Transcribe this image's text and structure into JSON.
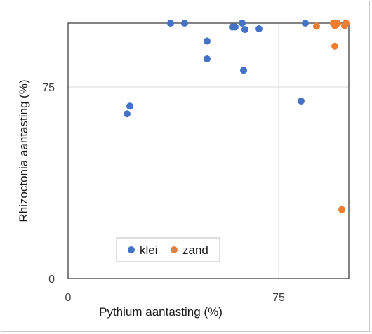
{
  "chart_data": {
    "type": "scatter",
    "title": "",
    "xlabel": "Pythium aantasting (%)",
    "ylabel": "Rhizoctonia aantasting (%)",
    "xlim": [
      0,
      100
    ],
    "ylim": [
      0,
      100
    ],
    "x_ticks": [
      {
        "value": 0,
        "label": "0"
      },
      {
        "value": 75,
        "label": "75"
      }
    ],
    "y_ticks": [
      {
        "value": 0,
        "label": "0"
      },
      {
        "value": 75,
        "label": "75"
      }
    ],
    "grid": true,
    "legend_position": "bottom-left",
    "series": [
      {
        "name": "klei",
        "color": "#4472C4",
        "points": [
          {
            "x": 21,
            "y": 64.5
          },
          {
            "x": 22,
            "y": 67.5
          },
          {
            "x": 36.5,
            "y": 100
          },
          {
            "x": 41.5,
            "y": 100
          },
          {
            "x": 49.5,
            "y": 93
          },
          {
            "x": 49.5,
            "y": 86
          },
          {
            "x": 58.5,
            "y": 98.5
          },
          {
            "x": 59.5,
            "y": 98.5
          },
          {
            "x": 62,
            "y": 100
          },
          {
            "x": 63,
            "y": 97.5
          },
          {
            "x": 62.5,
            "y": 81.5
          },
          {
            "x": 68,
            "y": 97.8
          },
          {
            "x": 83,
            "y": 69.5
          },
          {
            "x": 84.5,
            "y": 100
          }
        ]
      },
      {
        "name": "zand",
        "color": "#ED7D31",
        "points": [
          {
            "x": 88.5,
            "y": 98.8
          },
          {
            "x": 94.5,
            "y": 100
          },
          {
            "x": 95,
            "y": 99
          },
          {
            "x": 95.5,
            "y": 99.5
          },
          {
            "x": 96,
            "y": 100
          },
          {
            "x": 95,
            "y": 91
          },
          {
            "x": 98.5,
            "y": 99
          },
          {
            "x": 99,
            "y": 100
          },
          {
            "x": 97.5,
            "y": 27
          }
        ]
      }
    ]
  }
}
